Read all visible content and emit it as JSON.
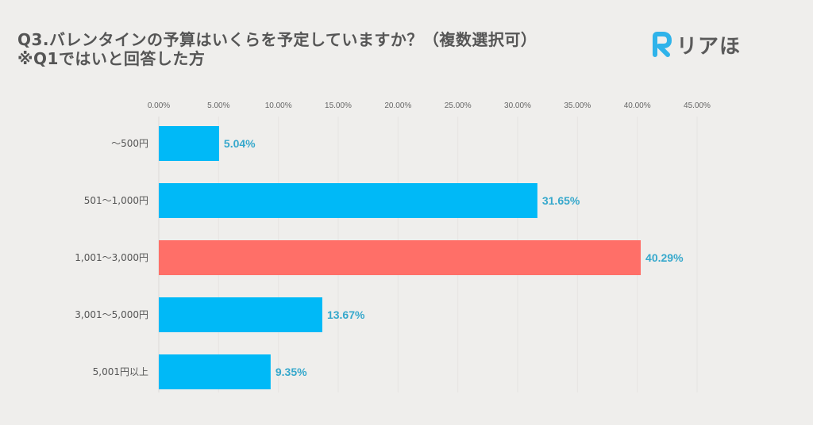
{
  "title": {
    "line1": "Q3.バレンタインの予算はいくらを予定していますか？（複数選択可）",
    "line2": "※Q1ではいと回答した方"
  },
  "logo": {
    "icon": "r-letter-logo-icon",
    "text": "リアほ",
    "accent": "#2fb3ea"
  },
  "chart_data": {
    "type": "bar",
    "orientation": "horizontal",
    "title": "Q3.バレンタインの予算はいくらを予定していますか？（複数選択可） ※Q1ではいと回答した方",
    "xlabel": "",
    "ylabel": "",
    "categories": [
      "～500円",
      "501～1,000円",
      "1,001～3,000円",
      "3,001～5,000円",
      "5,001円以上"
    ],
    "values": [
      5.04,
      31.65,
      40.29,
      13.67,
      9.35
    ],
    "value_labels": [
      "5.04%",
      "31.65%",
      "40.29%",
      "13.67%",
      "9.35%"
    ],
    "xlim": [
      0,
      45
    ],
    "x_ticks": [
      0,
      5,
      10,
      15,
      20,
      25,
      30,
      35,
      40,
      45
    ],
    "x_tick_labels": [
      "0.00%",
      "5.00%",
      "10.00%",
      "15.00%",
      "20.00%",
      "25.00%",
      "30.00%",
      "35.00%",
      "40.00%",
      "45.00%"
    ],
    "axis_position": "top",
    "grid": true,
    "legend": "none",
    "highlight_index": 2,
    "colors": {
      "default": "#00b9f7",
      "highlight": "#ff6f68",
      "value_label": "#36a8cc",
      "grid": "#e6e4e2"
    }
  }
}
